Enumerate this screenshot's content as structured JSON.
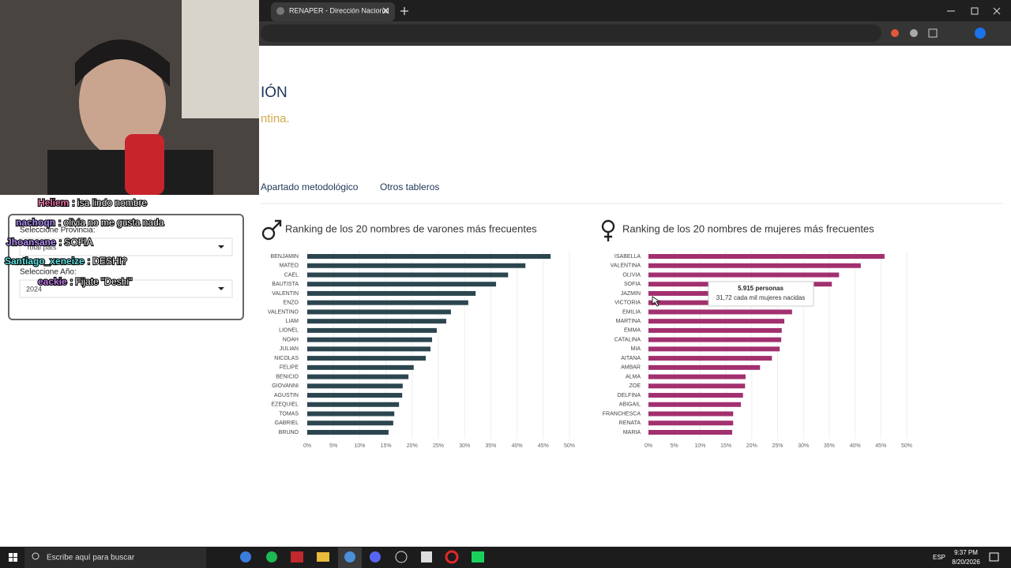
{
  "browser": {
    "tab_title": "RENAPER - Dirección Nacional"
  },
  "page": {
    "heading": "IÓN",
    "subtitle": "ntina.",
    "nav": [
      "Apartado metodológico",
      "Otros tableros"
    ]
  },
  "filters": {
    "province_label": "Seleccione Provincia:",
    "province_value": "Total país",
    "year_label": "Seleccione Año:",
    "year_value": "2024"
  },
  "chat": [
    {
      "user": "Heliem",
      "text": ": isa lindo nombre"
    },
    {
      "user": "nachoqn",
      "text": ": olivia no me gusta nada"
    },
    {
      "user": "Jhoansane",
      "text": ": SOFIA"
    },
    {
      "user": "Santiago_xeneize",
      "text": ": DESHI?"
    },
    {
      "user": "eackie",
      "text": ": Fijate \"Deshi\""
    }
  ],
  "chart_data": [
    {
      "type": "bar",
      "orientation": "horizontal",
      "title": "Ranking de los 20 nombres de varones más frecuentes",
      "categories": [
        "BENJAMIN",
        "MATEO",
        "CAEL",
        "BAUTISTA",
        "VALENTIN",
        "ENZO",
        "VALENTINO",
        "LIAM",
        "LIONEL",
        "NOAH",
        "JULIAN",
        "NICOLAS",
        "FELIPE",
        "BENICIO",
        "GIOVANNI",
        "AGUSTIN",
        "EZEQUIEL",
        "TOMAS",
        "GABRIEL",
        "BRUNO"
      ],
      "values": [
        46.4,
        41.6,
        38.3,
        36.0,
        32.1,
        30.7,
        27.4,
        26.5,
        24.7,
        23.8,
        23.5,
        22.6,
        20.3,
        19.3,
        18.2,
        18.1,
        17.5,
        16.6,
        16.4,
        15.5
      ],
      "color": "#2c4650",
      "xlim": [
        0,
        50
      ],
      "xticks": [
        {
          "value": 0,
          "label": "0%"
        },
        {
          "value": 5,
          "label": "5%"
        },
        {
          "value": 10,
          "label": "10%"
        },
        {
          "value": 15,
          "label": "15%"
        },
        {
          "value": 20,
          "label": "20%"
        },
        {
          "value": 25,
          "label": "25%"
        },
        {
          "value": 30,
          "label": "30%"
        },
        {
          "value": 35,
          "label": "35%"
        },
        {
          "value": 40,
          "label": "40%"
        },
        {
          "value": 45,
          "label": "45%"
        },
        {
          "value": 50,
          "label": "50%"
        }
      ],
      "grid": true
    },
    {
      "type": "bar",
      "orientation": "horizontal",
      "title": "Ranking de los 20 nombres de mujeres más frecuentes",
      "categories": [
        "ISABELLA",
        "VALENTINA",
        "OLIVIA",
        "SOFIA",
        "JAZMIN",
        "VICTORIA",
        "EMILIA",
        "MARTINA",
        "EMMA",
        "CATALINA",
        "MIA",
        "AITANA",
        "AMBAR",
        "ALMA",
        "ZOE",
        "DELFINA",
        "ABIGAIL",
        "FRANCHESCA",
        "RENATA",
        "MARIA"
      ],
      "values": [
        45.7,
        41.1,
        36.9,
        35.5,
        31.72,
        29.5,
        27.8,
        26.3,
        25.8,
        25.7,
        25.4,
        23.9,
        21.6,
        18.8,
        18.7,
        18.3,
        17.9,
        16.4,
        16.4,
        16.2
      ],
      "color": "#a2306f",
      "xlim": [
        0,
        50
      ],
      "xticks": [
        {
          "value": 0,
          "label": "0%"
        },
        {
          "value": 5,
          "label": "5%"
        },
        {
          "value": 10,
          "label": "10%"
        },
        {
          "value": 15,
          "label": "15%"
        },
        {
          "value": 20,
          "label": "20%"
        },
        {
          "value": 25,
          "label": "25%"
        },
        {
          "value": 30,
          "label": "30%"
        },
        {
          "value": 35,
          "label": "35%"
        },
        {
          "value": 40,
          "label": "40%"
        },
        {
          "value": 45,
          "label": "45%"
        },
        {
          "value": 50,
          "label": "50%"
        }
      ],
      "grid": true
    }
  ],
  "tooltip": {
    "title": "5.915 personas",
    "text": "31,72 cada mil mujeres nacidas"
  },
  "taskbar": {
    "search": "Escribe aquí para buscar",
    "language": "ESP",
    "time": "9:37 PM",
    "date": "8/20/2026"
  }
}
